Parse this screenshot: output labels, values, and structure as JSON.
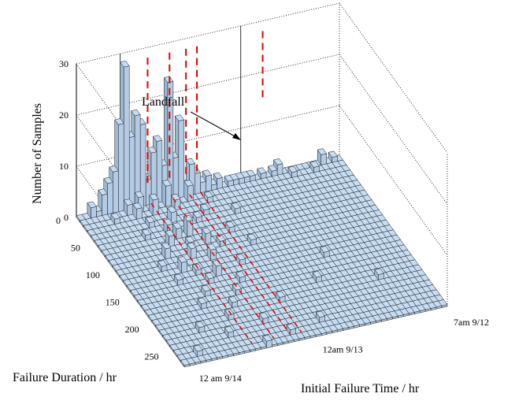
{
  "chart_data": {
    "type": "bar3d",
    "title": "",
    "zlabel": "Number of Samples",
    "ylabel": "Failure Duration / hr",
    "xlabel": "Initial Failure Time / hr",
    "zlim": [
      0,
      30
    ],
    "z_ticks": [
      "0",
      "10",
      "20",
      "30"
    ],
    "duration_ticks": [
      "0",
      "50",
      "100",
      "150",
      "200",
      "250"
    ],
    "time_ticks": [
      "7am 9/12",
      "12am 9/13",
      "12 am 9/14"
    ],
    "annotation": "Landfall",
    "grid": true,
    "colors": {
      "bar": "#c6dcf2",
      "edge": "#1a1a1a",
      "marker": "#e00000"
    },
    "grid_size": [
      48,
      30
    ],
    "nonzero_bars": [
      {
        "t": 36,
        "d": 0,
        "v": 2
      },
      {
        "t": 35,
        "d": 0,
        "v": 1
      },
      {
        "t": 33,
        "d": 0,
        "v": 1
      },
      {
        "t": 31,
        "d": 0,
        "v": 1
      },
      {
        "t": 30,
        "d": 0,
        "v": 1
      },
      {
        "t": 29,
        "d": 0,
        "v": 1
      },
      {
        "t": 28,
        "d": 0,
        "v": 1
      },
      {
        "t": 27,
        "d": 0,
        "v": 1
      },
      {
        "t": 25,
        "d": 0,
        "v": 2
      },
      {
        "t": 24,
        "d": 0,
        "v": 1
      },
      {
        "t": 23,
        "d": 0,
        "v": 3
      },
      {
        "t": 22,
        "d": 0,
        "v": 2
      },
      {
        "t": 21,
        "d": 0,
        "v": 4
      },
      {
        "t": 20,
        "d": 0,
        "v": 6
      },
      {
        "t": 19,
        "d": 0,
        "v": 2
      },
      {
        "t": 18,
        "d": 0,
        "v": 15
      },
      {
        "t": 17,
        "d": 0,
        "v": 8
      },
      {
        "t": 16,
        "d": 0,
        "v": 23
      },
      {
        "t": 15,
        "d": 0,
        "v": 7
      },
      {
        "t": 14,
        "d": 0,
        "v": 12
      },
      {
        "t": 13,
        "d": 0,
        "v": 10
      },
      {
        "t": 12,
        "d": 0,
        "v": 5
      },
      {
        "t": 11,
        "d": 0,
        "v": 16
      },
      {
        "t": 10,
        "d": 0,
        "v": 18
      },
      {
        "t": 9,
        "d": 0,
        "v": 14
      },
      {
        "t": 8,
        "d": 0,
        "v": 28
      },
      {
        "t": 7,
        "d": 0,
        "v": 17
      },
      {
        "t": 6,
        "d": 0,
        "v": 8
      },
      {
        "t": 5,
        "d": 0,
        "v": 6
      },
      {
        "t": 4,
        "d": 0,
        "v": 4
      },
      {
        "t": 3,
        "d": 0,
        "v": 1
      },
      {
        "t": 2,
        "d": 0,
        "v": 2
      },
      {
        "t": 44,
        "d": 0,
        "v": 2
      },
      {
        "t": 46,
        "d": 0,
        "v": 1
      },
      {
        "t": 19,
        "d": 1,
        "v": 3
      },
      {
        "t": 15,
        "d": 1,
        "v": 4
      },
      {
        "t": 10,
        "d": 1,
        "v": 3
      },
      {
        "t": 8,
        "d": 1,
        "v": 2
      },
      {
        "t": 42,
        "d": 1,
        "v": 1
      },
      {
        "t": 38,
        "d": 1,
        "v": 1
      },
      {
        "t": 16,
        "d": 2,
        "v": 2
      },
      {
        "t": 12,
        "d": 2,
        "v": 3
      },
      {
        "t": 9,
        "d": 2,
        "v": 2
      },
      {
        "t": 5,
        "d": 2,
        "v": 1
      },
      {
        "t": 22,
        "d": 2,
        "v": 1
      },
      {
        "t": 20,
        "d": 4,
        "v": 1
      },
      {
        "t": 14,
        "d": 4,
        "v": 2
      },
      {
        "t": 10,
        "d": 4,
        "v": 1
      },
      {
        "t": 25,
        "d": 5,
        "v": 1
      },
      {
        "t": 18,
        "d": 5,
        "v": 1
      },
      {
        "t": 12,
        "d": 6,
        "v": 2
      },
      {
        "t": 8,
        "d": 6,
        "v": 1
      },
      {
        "t": 15,
        "d": 7,
        "v": 3
      },
      {
        "t": 13,
        "d": 7,
        "v": 2
      },
      {
        "t": 22,
        "d": 8,
        "v": 1
      },
      {
        "t": 11,
        "d": 8,
        "v": 2
      },
      {
        "t": 17,
        "d": 9,
        "v": 2
      },
      {
        "t": 14,
        "d": 9,
        "v": 1
      },
      {
        "t": 9,
        "d": 10,
        "v": 2
      },
      {
        "t": 19,
        "d": 10,
        "v": 1
      },
      {
        "t": 13,
        "d": 11,
        "v": 2
      },
      {
        "t": 24,
        "d": 11,
        "v": 1
      },
      {
        "t": 7,
        "d": 12,
        "v": 1
      },
      {
        "t": 16,
        "d": 12,
        "v": 2
      },
      {
        "t": 10,
        "d": 13,
        "v": 2
      },
      {
        "t": 12,
        "d": 14,
        "v": 1
      },
      {
        "t": 20,
        "d": 14,
        "v": 1
      },
      {
        "t": 15,
        "d": 15,
        "v": 2
      },
      {
        "t": 8,
        "d": 15,
        "v": 1
      },
      {
        "t": 13,
        "d": 16,
        "v": 1
      },
      {
        "t": 18,
        "d": 17,
        "v": 1
      },
      {
        "t": 11,
        "d": 18,
        "v": 1
      },
      {
        "t": 16,
        "d": 19,
        "v": 1
      },
      {
        "t": 9,
        "d": 20,
        "v": 1
      },
      {
        "t": 14,
        "d": 21,
        "v": 1
      },
      {
        "t": 22,
        "d": 22,
        "v": 1
      },
      {
        "t": 12,
        "d": 23,
        "v": 1
      },
      {
        "t": 6,
        "d": 24,
        "v": 1
      },
      {
        "t": 17,
        "d": 25,
        "v": 1
      },
      {
        "t": 10,
        "d": 26,
        "v": 1
      },
      {
        "t": 26,
        "d": 27,
        "v": 1
      },
      {
        "t": 3,
        "d": 28,
        "v": 1
      },
      {
        "t": 20,
        "d": 28,
        "v": 1
      },
      {
        "t": 15,
        "d": 29,
        "v": 1
      },
      {
        "t": 30,
        "d": 20,
        "v": 1
      },
      {
        "t": 34,
        "d": 16,
        "v": 1
      },
      {
        "t": 40,
        "d": 22,
        "v": 1
      }
    ],
    "dashed_markers_t": [
      22,
      20,
      17,
      13
    ]
  }
}
